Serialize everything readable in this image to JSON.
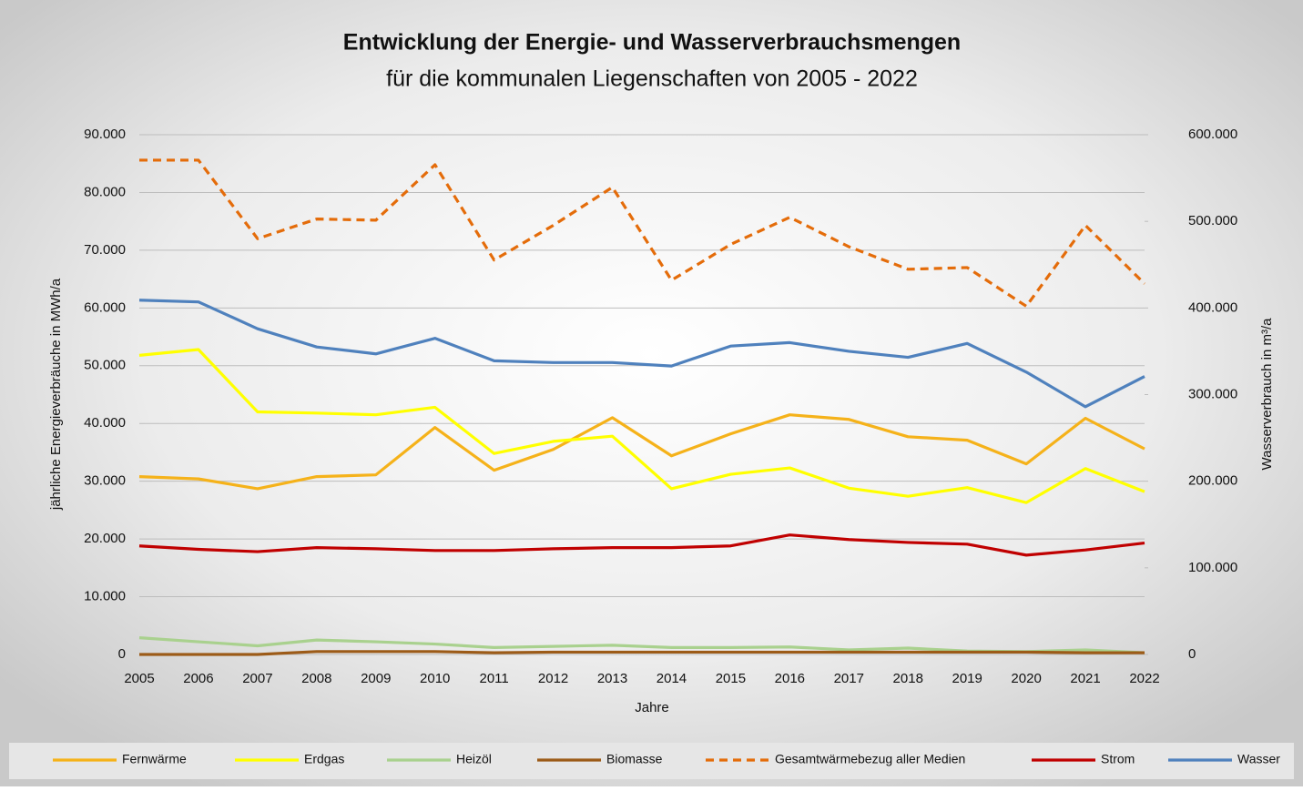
{
  "chart_data": {
    "type": "line",
    "title": "Entwicklung der Energie- und Wasserverbrauchsmengen",
    "subtitle": "für die kommunalen Liegenschaften von 2005 - 2022",
    "x_label": "Jahre",
    "y_label": "jährliche Energieverbräuche in MWh/a",
    "y2_label": "Wasserverbrauch in m³/a",
    "categories": [
      "2005",
      "2006",
      "2007",
      "2008",
      "2009",
      "2010",
      "2011",
      "2012",
      "2013",
      "2014",
      "2015",
      "2016",
      "2017",
      "2018",
      "2019",
      "2020",
      "2021",
      "2022"
    ],
    "ylim": [
      0,
      90000
    ],
    "yticks": [
      0,
      {
        "value": 10000,
        "label": "10.000"
      },
      {
        "value": 20000,
        "label": "20.000"
      },
      {
        "value": 30000,
        "label": "30.000"
      },
      {
        "value": 40000,
        "label": "40.000"
      },
      {
        "value": 50000,
        "label": "50.000"
      },
      {
        "value": 60000,
        "label": "60.000"
      },
      {
        "value": 70000,
        "label": "70.000"
      },
      {
        "value": 80000,
        "label": "80.000"
      },
      {
        "value": 90000,
        "label": "90.000"
      }
    ],
    "y2lim": [
      0,
      600000
    ],
    "y2ticks": [
      0,
      {
        "value": 100000,
        "label": "100.000"
      },
      {
        "value": 200000,
        "label": "200.000"
      },
      {
        "value": 300000,
        "label": "300.000"
      },
      {
        "value": 400000,
        "label": "400.000"
      },
      {
        "value": 500000,
        "label": "500.000"
      },
      {
        "value": 600000,
        "label": "600.000"
      }
    ],
    "grid": true,
    "legend": "bottom",
    "series": [
      {
        "name": "Fernwärme",
        "color": "#f5b21a",
        "values": [
          30800,
          30400,
          28700,
          30800,
          31100,
          39300,
          31900,
          35500,
          41000,
          34400,
          38200,
          41500,
          40700,
          37700,
          37100,
          33000,
          40900,
          35600
        ]
      },
      {
        "name": "Erdgas",
        "color": "#ffff00",
        "values": [
          51800,
          52800,
          42000,
          41800,
          41500,
          42800,
          34800,
          36900,
          37800,
          28700,
          31200,
          32300,
          28800,
          27400,
          28900,
          26300,
          32200,
          28200
        ]
      },
      {
        "name": "Heizöl",
        "color": "#a9d18e",
        "values": [
          2900,
          2200,
          1500,
          2500,
          2200,
          1800,
          1200,
          1400,
          1600,
          1200,
          1200,
          1300,
          800,
          1100,
          600,
          500,
          800,
          300
        ]
      },
      {
        "name": "Biomasse",
        "color": "#9c5b18",
        "values": [
          0,
          0,
          0,
          500,
          500,
          500,
          300,
          400,
          400,
          400,
          400,
          400,
          400,
          400,
          400,
          400,
          300,
          300
        ]
      },
      {
        "name": "Gesamtwärmebezug aller Medien",
        "color": "#e46c0a",
        "dashed": true,
        "values": [
          85600,
          85600,
          72000,
          75400,
          75200,
          84800,
          68300,
          74300,
          80900,
          64800,
          71000,
          75700,
          70600,
          66700,
          67000,
          60300,
          74300,
          64200
        ]
      },
      {
        "name": "Strom",
        "color": "#c00000",
        "values": [
          18800,
          18200,
          17800,
          18500,
          18300,
          18000,
          18000,
          18300,
          18500,
          18500,
          18800,
          20700,
          19900,
          19400,
          19100,
          17200,
          18100,
          19300
        ]
      },
      {
        "name": "Wasser",
        "color": "#4f81bd",
        "axis": "y2",
        "values": [
          409000,
          407000,
          376000,
          355000,
          347000,
          365000,
          339000,
          337000,
          337000,
          333000,
          356000,
          360000,
          350000,
          343000,
          359000,
          326000,
          286000,
          321000
        ]
      }
    ]
  }
}
